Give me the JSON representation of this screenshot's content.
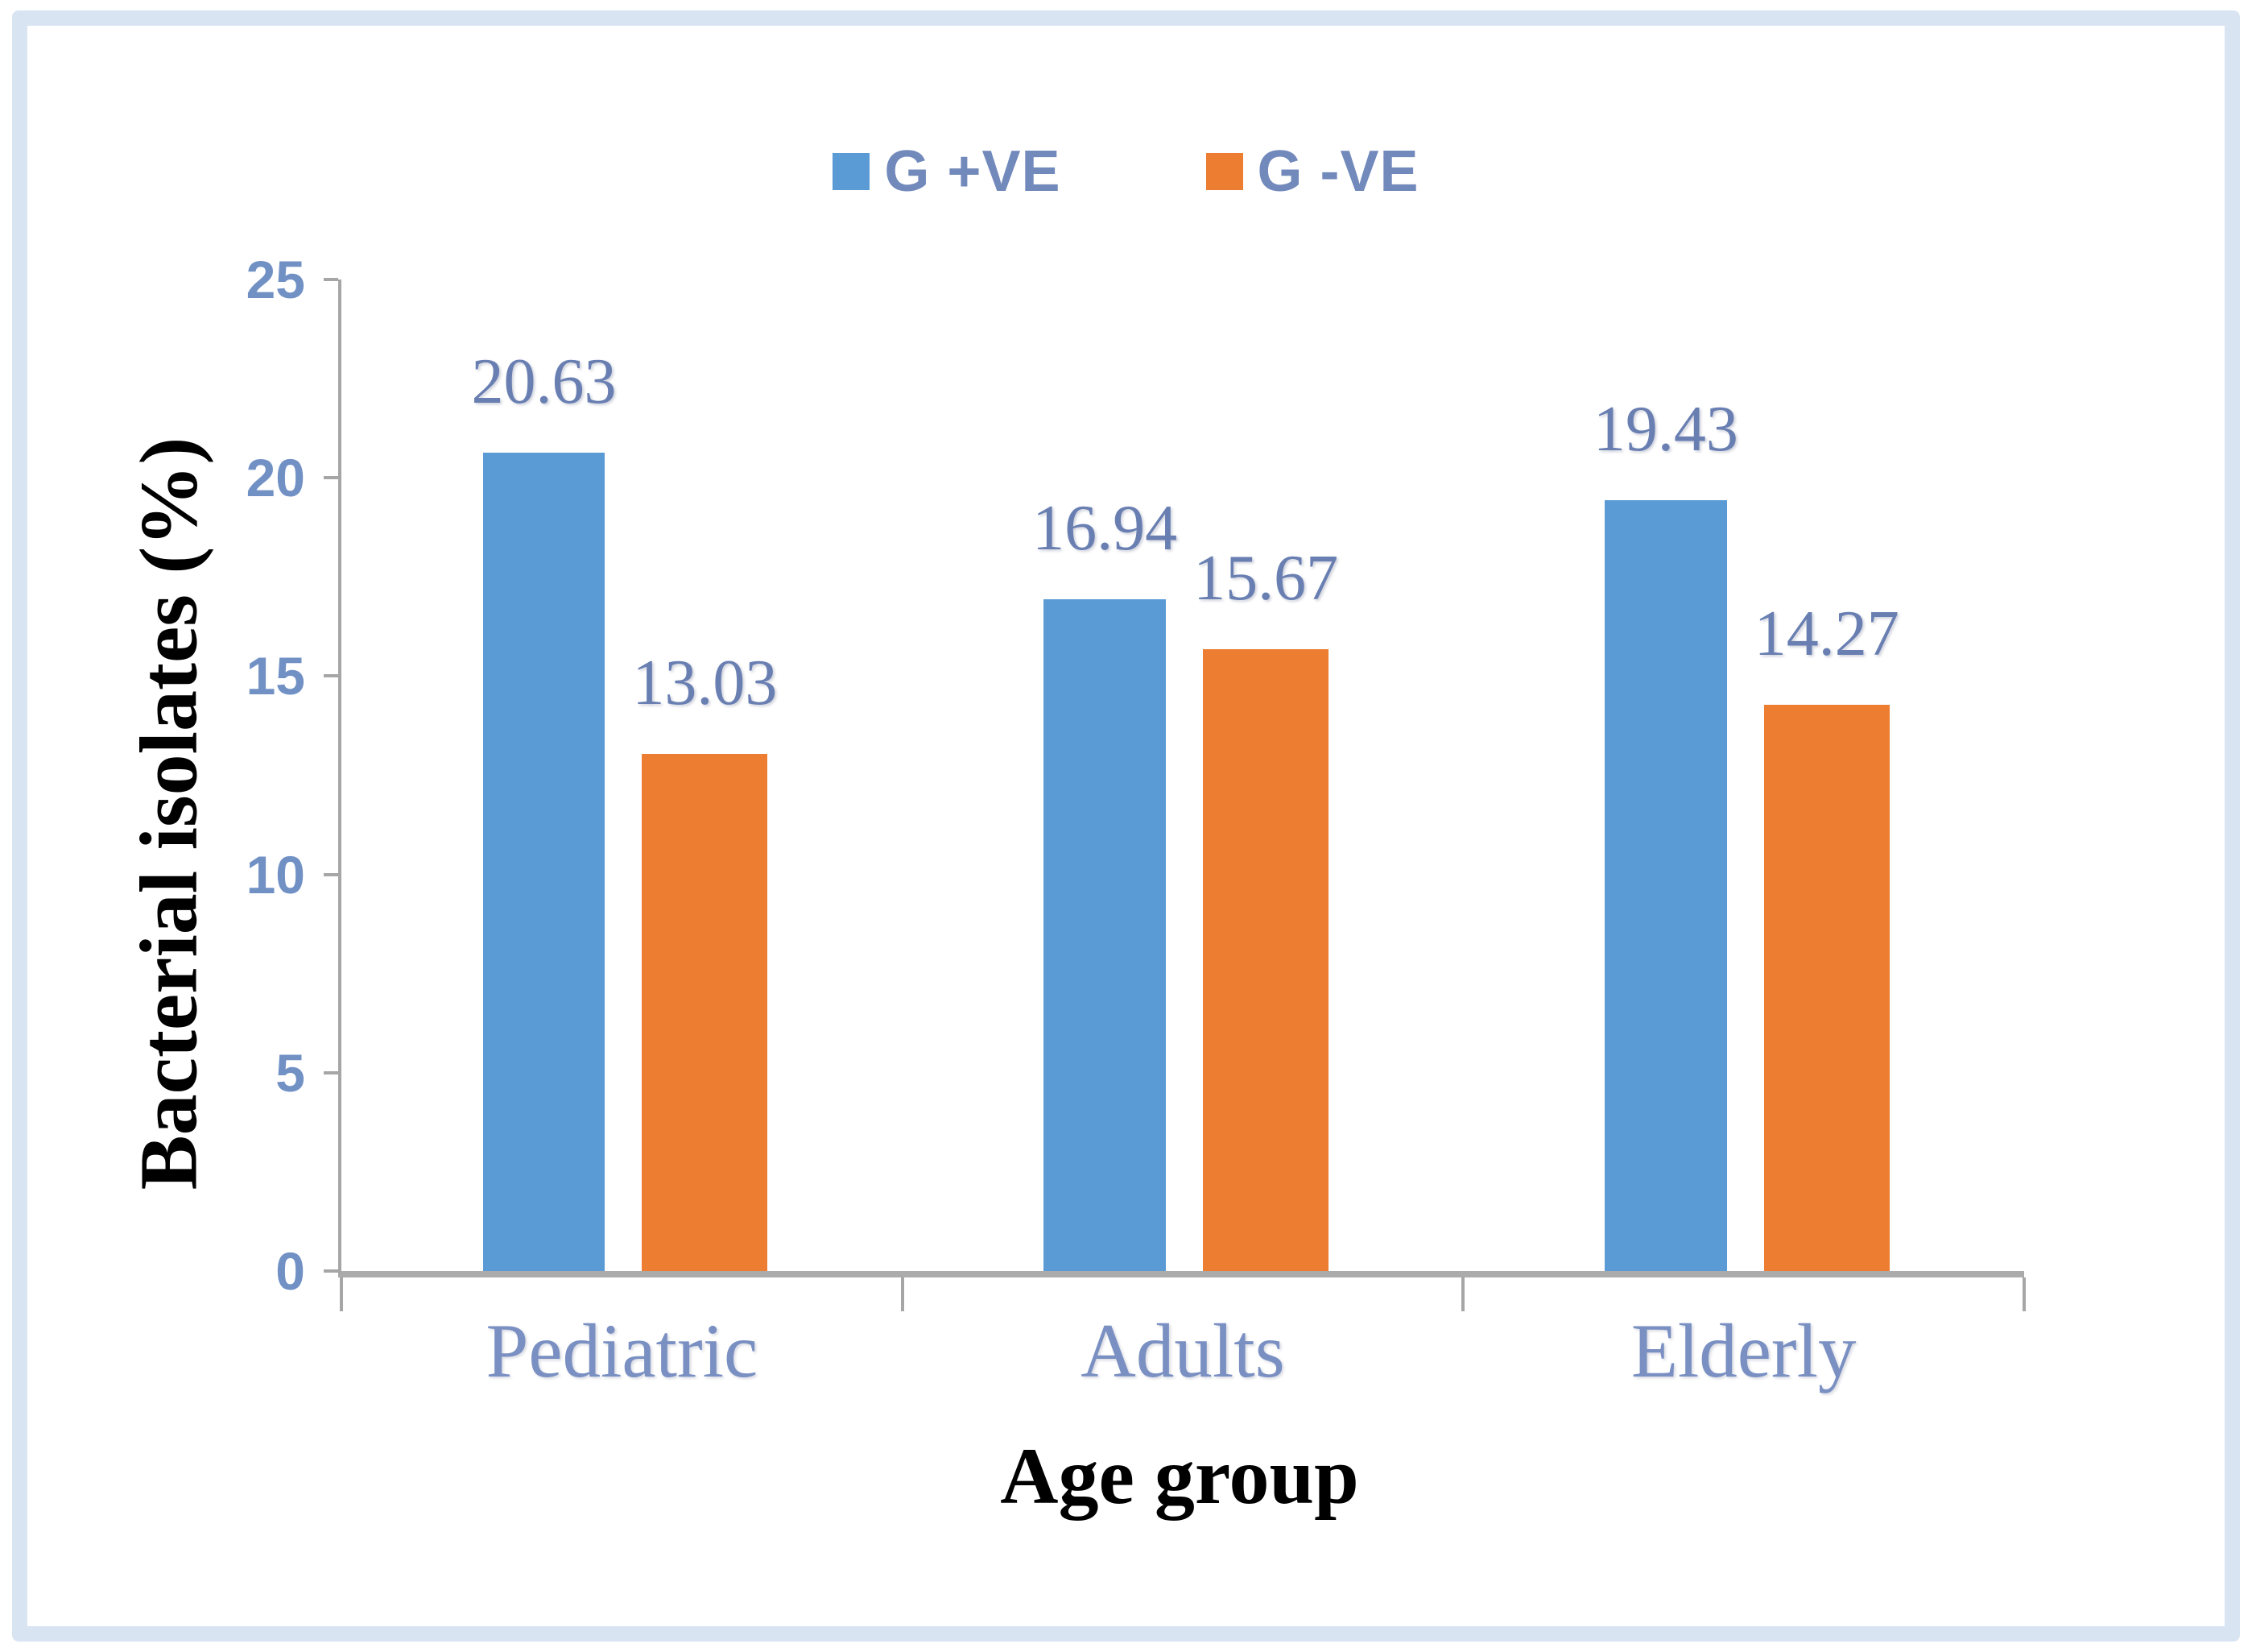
{
  "frame_color": "#d9e4f2",
  "axis_color": "#a6a6a6",
  "tick_label_color": "#7191c5",
  "category_label_color": "#7a90c2",
  "value_label_color": "#697fb2",
  "legend_text_color": "#7289bb",
  "chart_data": {
    "type": "bar",
    "categories": [
      "Pediatric",
      "Adults",
      "Elderly"
    ],
    "series": [
      {
        "name": "G +VE",
        "color": "#5B9BD5",
        "values": [
          20.63,
          16.94,
          19.43
        ]
      },
      {
        "name": "G -VE",
        "color": "#ED7D31",
        "values": [
          13.03,
          15.67,
          14.27
        ]
      }
    ],
    "xlabel": "Age group",
    "ylabel": "Bacterial isolates (%)",
    "ylim": [
      0,
      25
    ],
    "yticks": [
      0,
      5,
      10,
      15,
      20,
      25
    ],
    "grid": false,
    "legend_position": "top-center",
    "value_labels": true,
    "value_label_format": "2-decimals"
  }
}
